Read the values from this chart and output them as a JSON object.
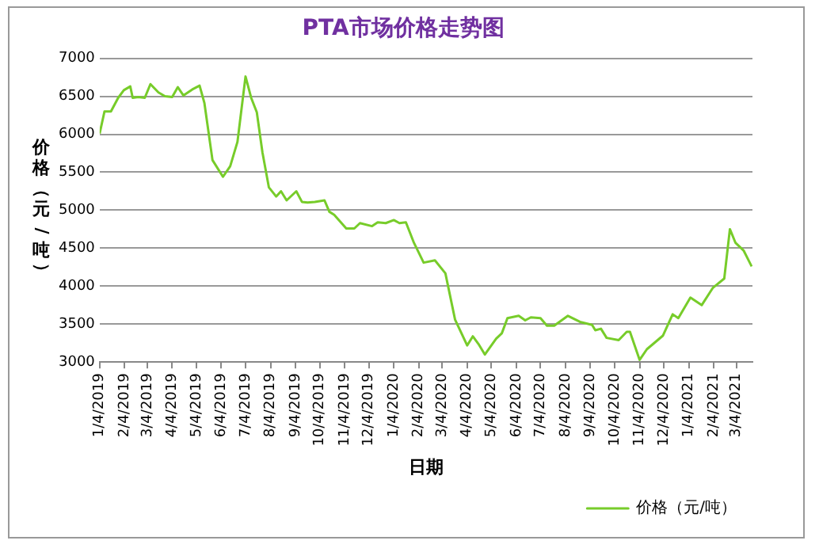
{
  "chart_data": {
    "type": "line",
    "title": "PTA市场价格走势图",
    "xlabel": "日期",
    "ylabel": "价格（元/吨）",
    "x": [
      "2019-01-04",
      "2019-01-10",
      "2019-01-18",
      "2019-01-27",
      "2019-02-03",
      "2019-02-11",
      "2019-02-14",
      "2019-02-21",
      "2019-03-01",
      "2019-03-08",
      "2019-03-18",
      "2019-03-26",
      "2019-04-04",
      "2019-04-11",
      "2019-04-18",
      "2019-04-29",
      "2019-05-08",
      "2019-05-14",
      "2019-05-24",
      "2019-06-06",
      "2019-06-15",
      "2019-06-24",
      "2019-07-04",
      "2019-07-11",
      "2019-07-18",
      "2019-07-25",
      "2019-08-02",
      "2019-08-11",
      "2019-08-17",
      "2019-08-24",
      "2019-09-05",
      "2019-09-12",
      "2019-09-19",
      "2019-09-28",
      "2019-10-10",
      "2019-10-16",
      "2019-10-22",
      "2019-11-06",
      "2019-11-16",
      "2019-11-23",
      "2019-12-08",
      "2019-12-15",
      "2019-12-25",
      "2020-01-04",
      "2020-01-11",
      "2020-01-19",
      "2020-01-29",
      "2020-02-10",
      "2020-02-24",
      "2020-03-08",
      "2020-03-20",
      "2020-04-04",
      "2020-04-11",
      "2020-04-18",
      "2020-04-26",
      "2020-05-10",
      "2020-05-17",
      "2020-05-24",
      "2020-06-07",
      "2020-06-15",
      "2020-06-22",
      "2020-07-04",
      "2020-07-12",
      "2020-07-21",
      "2020-08-07",
      "2020-08-22",
      "2020-09-06",
      "2020-09-10",
      "2020-09-17",
      "2020-09-24",
      "2020-10-09",
      "2020-10-19",
      "2020-10-23",
      "2020-11-04",
      "2020-11-13",
      "2020-12-03",
      "2020-12-15",
      "2020-12-22",
      "2021-01-06",
      "2021-01-20",
      "2021-02-03",
      "2021-02-17",
      "2021-02-24",
      "2021-03-03",
      "2021-03-13",
      "2021-03-23"
    ],
    "series": [
      {
        "name": "价格（元/吨）",
        "color": "#77cc2a",
        "values": [
          6010,
          6300,
          6300,
          6480,
          6580,
          6630,
          6480,
          6490,
          6480,
          6660,
          6550,
          6500,
          6490,
          6620,
          6510,
          6590,
          6640,
          6410,
          5660,
          5440,
          5580,
          5900,
          6760,
          6480,
          6290,
          5760,
          5300,
          5180,
          5250,
          5130,
          5250,
          5110,
          5100,
          5110,
          5130,
          4980,
          4940,
          4760,
          4760,
          4830,
          4790,
          4840,
          4830,
          4870,
          4830,
          4840,
          4570,
          4310,
          4340,
          4170,
          3560,
          3220,
          3340,
          3240,
          3100,
          3310,
          3380,
          3580,
          3610,
          3550,
          3590,
          3580,
          3480,
          3480,
          3610,
          3530,
          3490,
          3420,
          3440,
          3320,
          3290,
          3400,
          3400,
          3030,
          3170,
          3350,
          3630,
          3580,
          3850,
          3750,
          3980,
          4100,
          4750,
          4570,
          4470,
          4260
        ]
      }
    ],
    "xlim": [
      "2019-01-04",
      "2021-03-24"
    ],
    "xticks": [
      {
        "value": "2019-01-04",
        "label": "1/4/2019"
      },
      {
        "value": "2019-02-04",
        "label": "2/4/2019"
      },
      {
        "value": "2019-03-04",
        "label": "3/4/2019"
      },
      {
        "value": "2019-04-04",
        "label": "4/4/2019"
      },
      {
        "value": "2019-05-04",
        "label": "5/4/2019"
      },
      {
        "value": "2019-06-04",
        "label": "6/4/2019"
      },
      {
        "value": "2019-07-04",
        "label": "7/4/2019"
      },
      {
        "value": "2019-08-04",
        "label": "8/4/2019"
      },
      {
        "value": "2019-09-04",
        "label": "9/4/2019"
      },
      {
        "value": "2019-10-04",
        "label": "10/4/2019"
      },
      {
        "value": "2019-11-04",
        "label": "11/4/2019"
      },
      {
        "value": "2019-12-04",
        "label": "12/4/2019"
      },
      {
        "value": "2020-01-04",
        "label": "1/4/2020"
      },
      {
        "value": "2020-02-04",
        "label": "2/4/2020"
      },
      {
        "value": "2020-03-04",
        "label": "3/4/2020"
      },
      {
        "value": "2020-04-04",
        "label": "4/4/2020"
      },
      {
        "value": "2020-05-04",
        "label": "5/4/2020"
      },
      {
        "value": "2020-06-04",
        "label": "6/4/2020"
      },
      {
        "value": "2020-07-04",
        "label": "7/4/2020"
      },
      {
        "value": "2020-08-04",
        "label": "8/4/2020"
      },
      {
        "value": "2020-09-04",
        "label": "9/4/2020"
      },
      {
        "value": "2020-10-04",
        "label": "10/4/2020"
      },
      {
        "value": "2020-11-04",
        "label": "11/4/2020"
      },
      {
        "value": "2020-12-04",
        "label": "12/4/2020"
      },
      {
        "value": "2021-01-04",
        "label": "1/4/2021"
      },
      {
        "value": "2021-02-04",
        "label": "2/4/2021"
      },
      {
        "value": "2021-03-04",
        "label": "3/4/2021"
      }
    ],
    "ylim": [
      3000,
      7000
    ],
    "yticks": [
      3000,
      3500,
      4000,
      4500,
      5000,
      5500,
      6000,
      6500,
      7000
    ],
    "grid": "y",
    "legend": "bottom right",
    "marker": "none",
    "line_style": "solid"
  }
}
